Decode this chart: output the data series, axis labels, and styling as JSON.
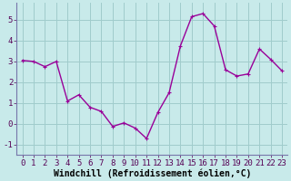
{
  "x": [
    0,
    1,
    2,
    3,
    4,
    5,
    6,
    7,
    8,
    9,
    10,
    11,
    12,
    13,
    14,
    15,
    16,
    17,
    18,
    19,
    20,
    21,
    22,
    23
  ],
  "y": [
    3.05,
    3.0,
    2.75,
    3.0,
    1.1,
    1.4,
    0.8,
    0.6,
    -0.12,
    0.05,
    -0.2,
    -0.7,
    0.55,
    1.5,
    3.75,
    5.15,
    5.3,
    4.7,
    2.6,
    2.3,
    2.4,
    3.6,
    3.1,
    2.55
  ],
  "line_color": "#990099",
  "marker": "+",
  "marker_size": 3,
  "bg_color": "#c8eaea",
  "grid_color": "#a0cccc",
  "spine_color": "#7777aa",
  "xlabel": "Windchill (Refroidissement éolien,°C)",
  "xlim": [
    -0.5,
    23.5
  ],
  "ylim": [
    -1.5,
    5.8
  ],
  "yticks": [
    -1,
    0,
    1,
    2,
    3,
    4,
    5
  ],
  "xticks": [
    0,
    1,
    2,
    3,
    4,
    5,
    6,
    7,
    8,
    9,
    10,
    11,
    12,
    13,
    14,
    15,
    16,
    17,
    18,
    19,
    20,
    21,
    22,
    23
  ],
  "xlabel_fontsize": 7,
  "tick_fontsize": 6.5,
  "line_width": 1.0
}
